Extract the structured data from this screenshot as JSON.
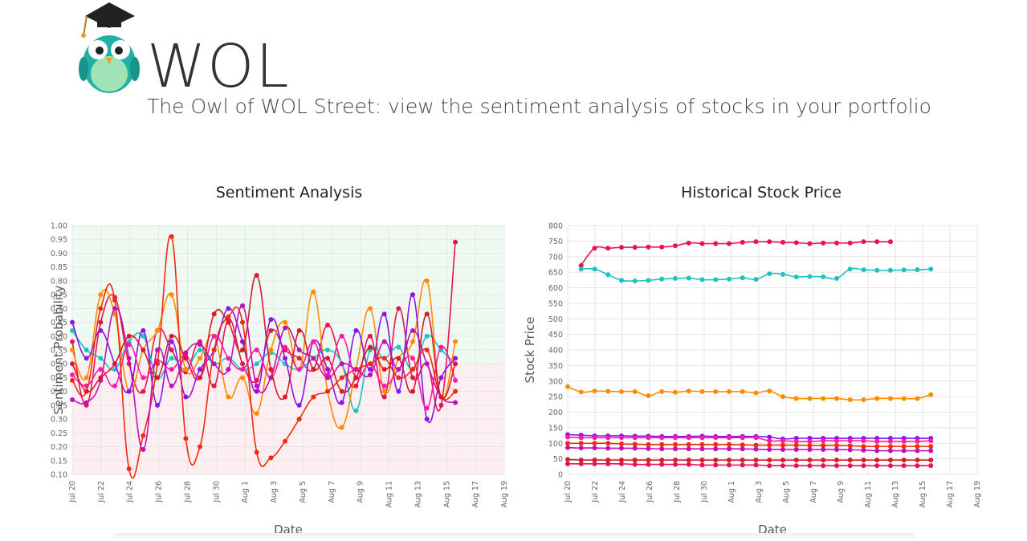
{
  "header": {
    "brand": "WOL",
    "tagline": "The Owl of WOL Street: view the sentiment analysis of stocks in your portfolio"
  },
  "colors": {
    "series": [
      "#e8134f",
      "#1fc1c1",
      "#ff8c00",
      "#8e13e8",
      "#ff1aa8",
      "#f02b0e",
      "#c40fb5",
      "#d81a2a"
    ],
    "positive_band": "#eefaf1",
    "negative_band": "#fdeff1"
  },
  "chart_data": [
    {
      "type": "line",
      "title": "Sentiment Analysis",
      "xlabel": "Date",
      "ylabel": "Sentiment Probability",
      "ylim": [
        0.1,
        1.0
      ],
      "x_ticks": [
        "Jul 20",
        "Jul 22",
        "Jul 24",
        "Jul 26",
        "Jul 28",
        "Jul 30",
        "Aug 1",
        "Aug 3",
        "Aug 5",
        "Aug 7",
        "Aug 9",
        "Aug 11",
        "Aug 13",
        "Aug 15",
        "Aug 17",
        "Aug 19"
      ],
      "y_ticks": [
        "0.10",
        "0.15",
        "0.20",
        "0.25",
        "0.30",
        "0.35",
        "0.40",
        "0.45",
        "0.50",
        "0.55",
        "0.60",
        "0.65",
        "0.70",
        "0.75",
        "0.80",
        "0.85",
        "0.90",
        "0.95",
        "1.00"
      ],
      "grid": true,
      "series": [
        {
          "values": [
            0.58,
            0.35,
            0.65,
            0.74,
            0.5,
            0.4,
            0.62,
            0.55,
            0.47,
            0.58,
            0.42,
            0.66,
            0.5,
            0.44,
            0.62,
            0.55,
            0.52,
            0.48,
            0.64,
            0.5,
            0.42,
            0.6,
            0.38,
            0.7,
            0.45,
            0.5,
            0.35,
            0.94
          ]
        },
        {
          "values": [
            0.62,
            0.55,
            0.52,
            0.48,
            0.58,
            0.6,
            0.45,
            0.52,
            0.48,
            0.55,
            0.5,
            0.52,
            0.48,
            0.5,
            0.54,
            0.5,
            0.48,
            0.52,
            0.55,
            0.5,
            0.33,
            0.55,
            0.52,
            0.56,
            0.48,
            0.6,
            0.55,
            0.5
          ]
        },
        {
          "values": [
            0.55,
            0.45,
            0.75,
            0.68,
            0.4,
            0.55,
            0.62,
            0.75,
            0.48,
            0.52,
            0.6,
            0.38,
            0.45,
            0.32,
            0.55,
            0.65,
            0.48,
            0.76,
            0.4,
            0.27,
            0.48,
            0.7,
            0.4,
            0.52,
            0.58,
            0.8,
            0.38,
            0.58
          ]
        },
        {
          "values": [
            0.65,
            0.52,
            0.62,
            0.5,
            0.4,
            0.62,
            0.35,
            0.58,
            0.38,
            0.48,
            0.55,
            0.7,
            0.58,
            0.4,
            0.66,
            0.52,
            0.35,
            0.58,
            0.48,
            0.36,
            0.62,
            0.48,
            0.68,
            0.4,
            0.75,
            0.3,
            0.45,
            0.52
          ]
        },
        {
          "values": [
            0.46,
            0.42,
            0.48,
            0.42,
            0.57,
            0.45,
            0.51,
            0.48,
            0.53,
            0.45,
            0.6,
            0.52,
            0.48,
            0.55,
            0.45,
            0.56,
            0.48,
            0.58,
            0.46,
            0.6,
            0.45,
            0.5,
            0.42,
            0.48,
            0.52,
            0.34,
            0.56,
            0.44
          ]
        },
        {
          "values": [
            0.44,
            0.4,
            0.7,
            0.73,
            0.12,
            0.24,
            0.5,
            0.96,
            0.23,
            0.2,
            0.55,
            0.67,
            0.65,
            0.18,
            0.16,
            0.22,
            0.3,
            0.38,
            0.4,
            0.45,
            0.48,
            0.5,
            0.52,
            0.45,
            0.48,
            0.55,
            0.38,
            0.4
          ]
        },
        {
          "values": [
            0.37,
            0.36,
            0.44,
            0.7,
            0.52,
            0.19,
            0.55,
            0.42,
            0.54,
            0.57,
            0.5,
            0.48,
            0.71,
            0.42,
            0.45,
            0.63,
            0.55,
            0.52,
            0.45,
            0.5,
            0.48,
            0.46,
            0.58,
            0.48,
            0.62,
            0.5,
            0.38,
            0.36
          ]
        },
        {
          "values": [
            0.5,
            0.4,
            0.45,
            0.5,
            0.6,
            0.55,
            0.45,
            0.6,
            0.52,
            0.45,
            0.68,
            0.65,
            0.55,
            0.82,
            0.48,
            0.38,
            0.62,
            0.48,
            0.52,
            0.4,
            0.45,
            0.56,
            0.48,
            0.52,
            0.4,
            0.68,
            0.38,
            0.5
          ]
        }
      ]
    },
    {
      "type": "line",
      "title": "Historical Stock Price",
      "xlabel": "Date",
      "ylabel": "Stock Price",
      "ylim": [
        0,
        800
      ],
      "x_ticks": [
        "Jul 20",
        "Jul 22",
        "Jul 24",
        "Jul 26",
        "Jul 28",
        "Jul 30",
        "Aug 1",
        "Aug 3",
        "Aug 5",
        "Aug 7",
        "Aug 9",
        "Aug 11",
        "Aug 13",
        "Aug 15",
        "Aug 17",
        "Aug 19"
      ],
      "y_ticks": [
        "0",
        "50",
        "100",
        "150",
        "200",
        "250",
        "300",
        "350",
        "400",
        "450",
        "500",
        "550",
        "600",
        "650",
        "700",
        "750",
        "800"
      ],
      "grid": true,
      "series": [
        {
          "values": [
            null,
            672,
            727,
            727,
            730,
            730,
            731,
            731,
            735,
            744,
            742,
            742,
            742,
            746,
            748,
            748,
            746,
            745,
            742,
            744,
            744,
            744,
            748,
            748,
            748,
            null
          ]
        },
        {
          "values": [
            null,
            660,
            660,
            642,
            624,
            622,
            624,
            628,
            630,
            631,
            626,
            626,
            628,
            632,
            627,
            645,
            643,
            635,
            636,
            635,
            630,
            660,
            658,
            656,
            656,
            657,
            658,
            660
          ]
        },
        {
          "values": [
            282,
            265,
            268,
            267,
            266,
            266,
            253,
            266,
            264,
            268,
            266,
            266,
            266,
            266,
            262,
            268,
            250,
            244,
            244,
            244,
            244,
            240,
            240,
            244,
            244,
            244,
            244,
            256
          ]
        },
        {
          "values": [
            128,
            126,
            124,
            124,
            124,
            123,
            123,
            122,
            122,
            122,
            123,
            122,
            122,
            122,
            122,
            120,
            114,
            116,
            116,
            116,
            116,
            116,
            116,
            116,
            116,
            116,
            116,
            116
          ]
        },
        {
          "values": [
            120,
            118,
            118,
            118,
            118,
            118,
            118,
            118,
            118,
            118,
            118,
            118,
            118,
            118,
            118,
            108,
            108,
            106,
            106,
            108,
            108,
            108,
            108,
            106,
            106,
            106,
            106,
            108
          ]
        },
        {
          "values": [
            100,
            100,
            100,
            100,
            98,
            97,
            96,
            96,
            96,
            96,
            96,
            96,
            96,
            95,
            94,
            94,
            94,
            94,
            93,
            93,
            93,
            92,
            90,
            90,
            90,
            90,
            90,
            90
          ]
        },
        {
          "values": [
            86,
            85,
            85,
            84,
            84,
            84,
            83,
            82,
            82,
            82,
            82,
            82,
            82,
            82,
            81,
            80,
            80,
            80,
            80,
            80,
            80,
            79,
            78,
            76,
            76,
            76,
            76,
            76
          ]
        },
        {
          "values": [
            48,
            46,
            46,
            46,
            46,
            46,
            46,
            46,
            46,
            46,
            46,
            46,
            46,
            46,
            46,
            46,
            46,
            46,
            46,
            46,
            46,
            46,
            46,
            46,
            46,
            46,
            46,
            46
          ]
        },
        {
          "values": [
            34,
            34,
            34,
            34,
            34,
            32,
            32,
            32,
            32,
            32,
            30,
            30,
            30,
            30,
            30,
            28,
            28,
            28,
            28,
            28,
            28,
            28,
            28,
            28,
            28,
            28,
            28,
            28
          ]
        }
      ]
    }
  ]
}
